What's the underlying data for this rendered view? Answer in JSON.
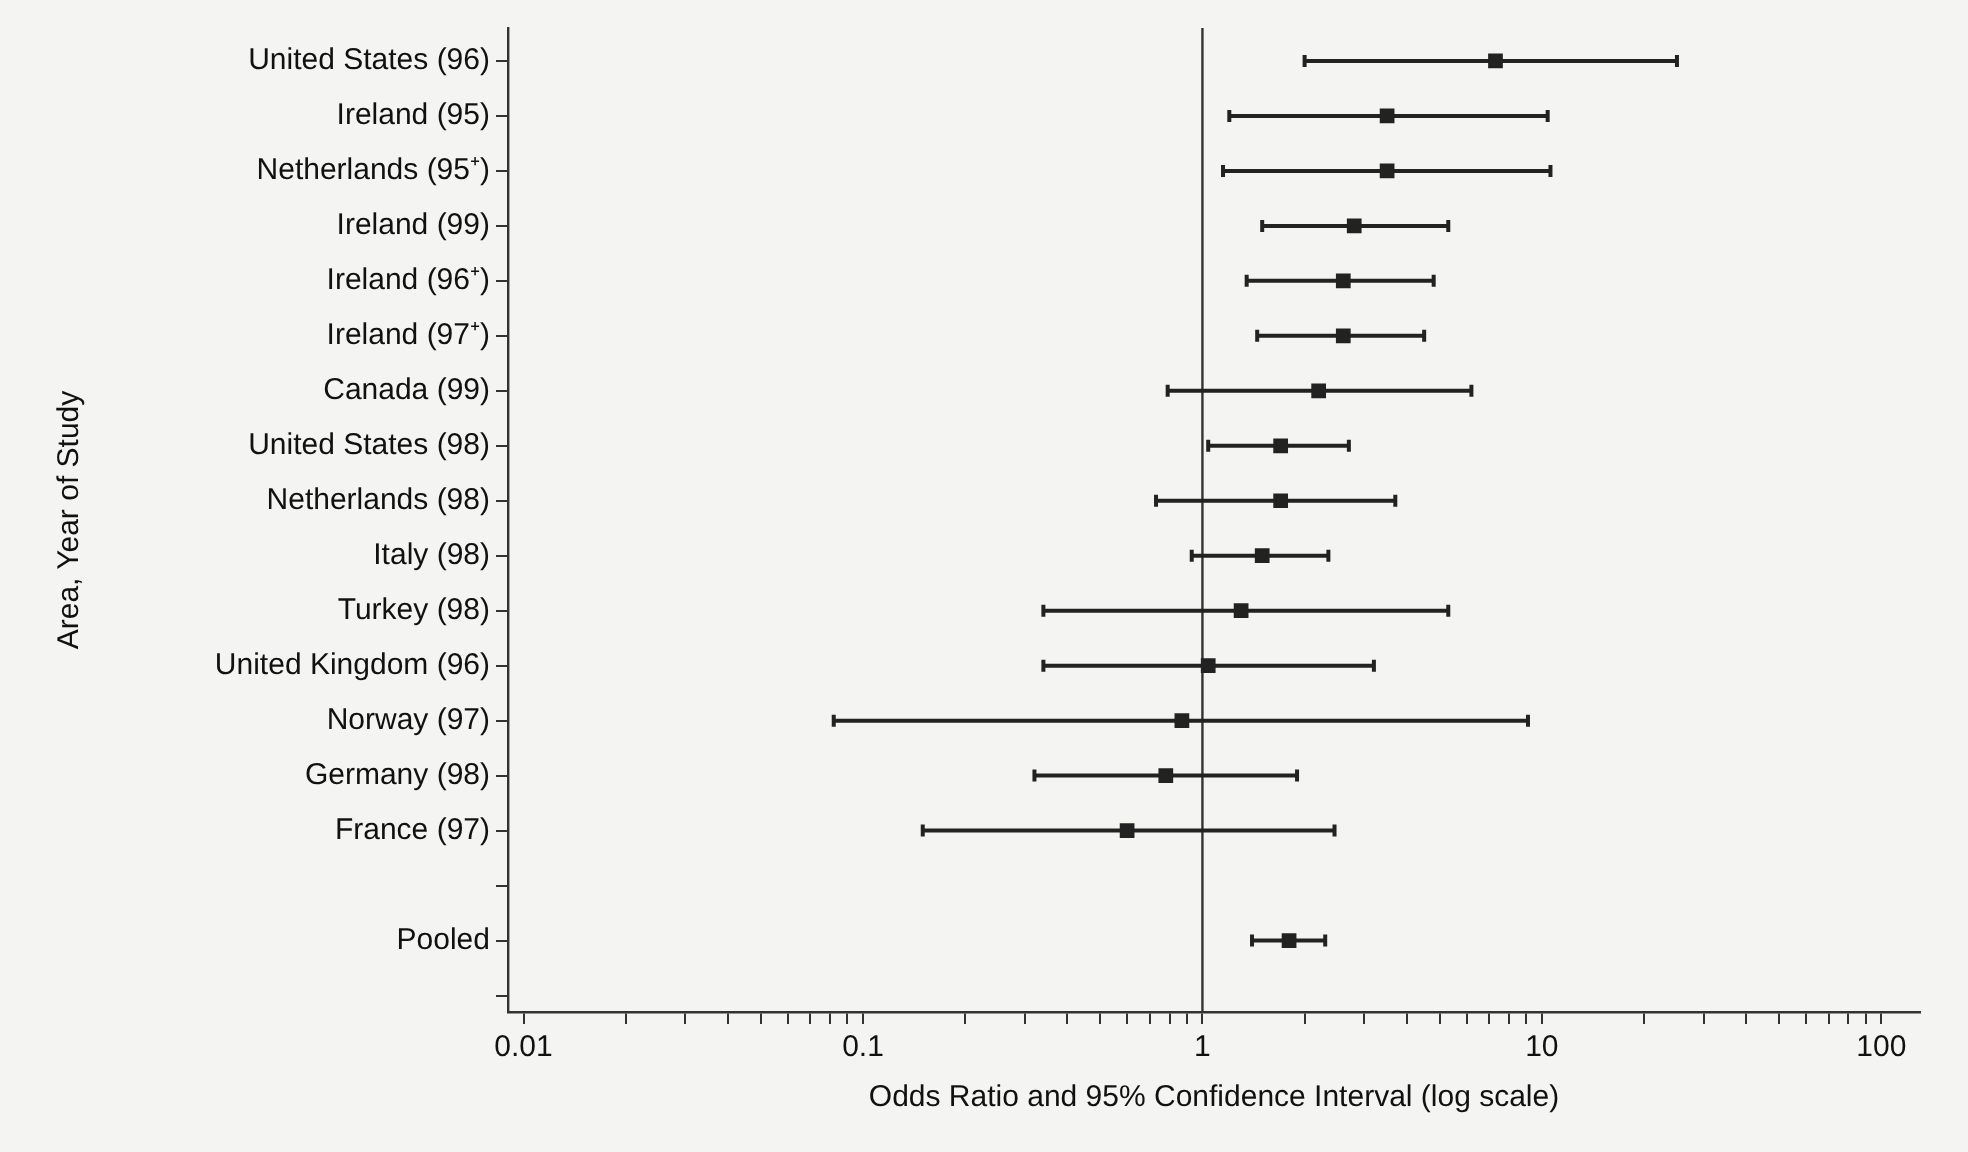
{
  "chart_data": {
    "type": "scatter",
    "orientation": "horizontal",
    "xlabel": "Odds Ratio and 95% Confidence Interval (log scale)",
    "ylabel": "Area, Year of Study",
    "categories": [
      "United States (96)",
      "Ireland (95)",
      "Netherlands (95⁺)",
      "Ireland (99)",
      "Ireland (96⁺)",
      "Ireland (97⁺)",
      "Canada (99)",
      "United States (98)",
      "Netherlands (98)",
      "Italy (98)",
      "Turkey (98)",
      "United Kingdom (96)",
      "Norway (97)",
      "Germany (98)",
      "France (97)",
      null,
      "Pooled",
      null
    ],
    "values": [
      7.3,
      3.5,
      3.5,
      2.8,
      2.6,
      2.6,
      2.2,
      1.7,
      1.7,
      1.5,
      1.3,
      1.04,
      0.87,
      0.78,
      0.6,
      null,
      1.8,
      null
    ],
    "errors": [
      [
        2.0,
        25
      ],
      [
        1.2,
        10.4
      ],
      [
        1.15,
        10.6
      ],
      [
        1.5,
        5.3
      ],
      [
        1.35,
        4.8
      ],
      [
        1.45,
        4.5
      ],
      [
        0.79,
        6.2
      ],
      [
        1.04,
        2.7
      ],
      [
        0.73,
        3.7
      ],
      [
        0.93,
        2.35
      ],
      [
        0.34,
        5.3
      ],
      [
        0.34,
        3.2
      ],
      [
        0.082,
        9.1
      ],
      [
        0.32,
        1.9
      ],
      [
        0.15,
        2.45
      ],
      null,
      [
        1.4,
        2.3
      ],
      null
    ],
    "color": "#222222",
    "marker": "square",
    "log": "x",
    "grid": false,
    "legend": false,
    "xlim": [
      0.009,
      130
    ],
    "xticks": [
      0.01,
      {
        "value": 0.02,
        "label": null
      },
      {
        "value": 0.03,
        "label": null
      },
      {
        "value": 0.04,
        "label": null
      },
      {
        "value": 0.05,
        "label": null
      },
      {
        "value": 0.06,
        "label": null
      },
      {
        "value": 0.07,
        "label": null
      },
      {
        "value": 0.08,
        "label": null
      },
      {
        "value": 0.09,
        "label": null
      },
      0.1,
      {
        "value": 0.2,
        "label": null
      },
      {
        "value": 0.3,
        "label": null
      },
      {
        "value": 0.4,
        "label": null
      },
      {
        "value": 0.5,
        "label": null
      },
      {
        "value": 0.6,
        "label": null
      },
      {
        "value": 0.7,
        "label": null
      },
      {
        "value": 0.8,
        "label": null
      },
      {
        "value": 0.9,
        "label": null
      },
      1,
      {
        "value": 2,
        "label": null
      },
      {
        "value": 3,
        "label": null
      },
      {
        "value": 4,
        "label": null
      },
      {
        "value": 5,
        "label": null
      },
      {
        "value": 6,
        "label": null
      },
      {
        "value": 7,
        "label": null
      },
      {
        "value": 8,
        "label": null
      },
      {
        "value": 9,
        "label": null
      },
      10,
      {
        "value": 20,
        "label": null
      },
      {
        "value": 30,
        "label": null
      },
      {
        "value": 40,
        "label": null
      },
      {
        "value": 50,
        "label": null
      },
      {
        "value": 60,
        "label": null
      },
      {
        "value": 70,
        "label": null
      },
      {
        "value": 80,
        "label": null
      },
      {
        "value": 90,
        "label": null
      },
      100
    ],
    "ref_lines": [
      {
        "axis": "x",
        "value": 1,
        "color": "#333333",
        "line_style": "solid"
      }
    ]
  }
}
